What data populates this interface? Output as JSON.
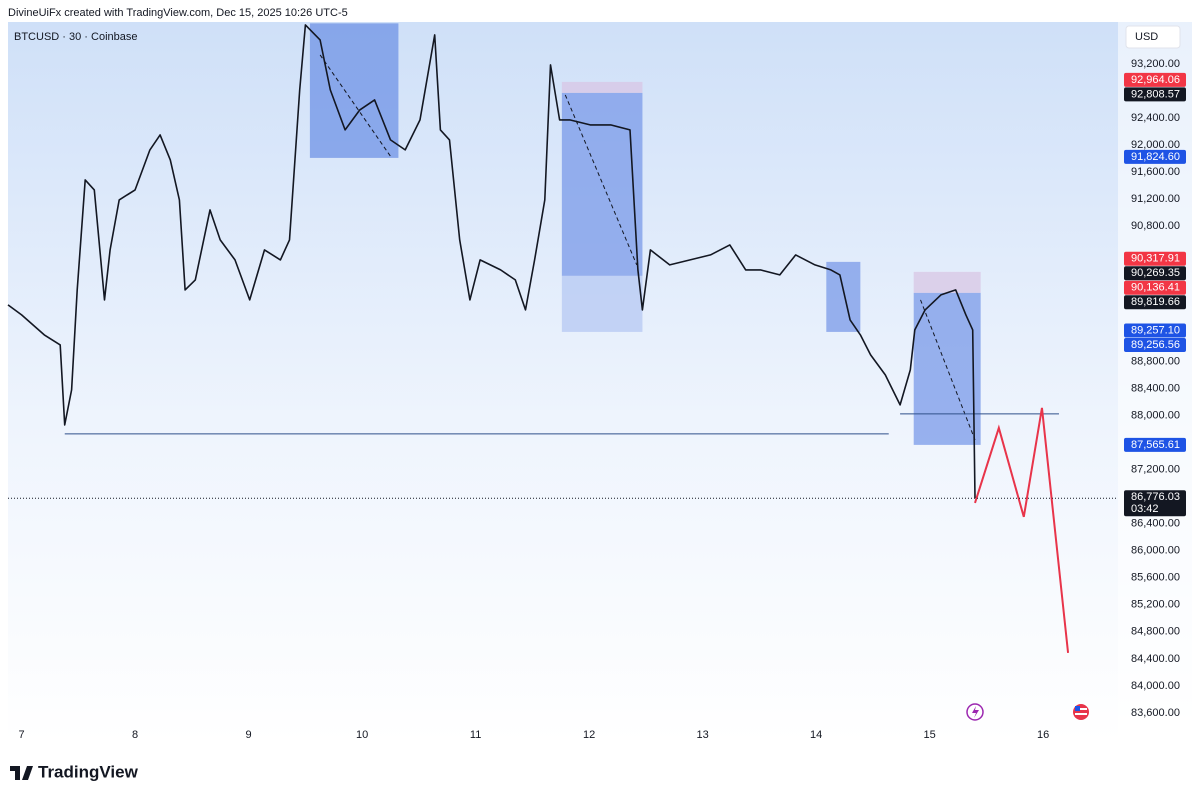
{
  "header": "DivineUiFx created with TradingView.com, Dec 15, 2025 10:26 UTC-5",
  "footer": "TradingView",
  "chart_data": {
    "type": "line",
    "title": "BTCUSD · 30 · Coinbase",
    "currency": "USD",
    "color": "#131722",
    "x": [
      6.88,
      7.0,
      7.2,
      7.34,
      7.38,
      7.44,
      7.49,
      7.56,
      7.64,
      7.73,
      7.78,
      7.86,
      8.0,
      8.13,
      8.22,
      8.31,
      8.39,
      8.44,
      8.53,
      8.66,
      8.75,
      8.88,
      9.01,
      9.14,
      9.28,
      9.36,
      9.45,
      9.5,
      9.63,
      9.72,
      9.85,
      9.98,
      10.11,
      10.25,
      10.38,
      10.51,
      10.64,
      10.69,
      10.77,
      10.86,
      10.95,
      11.04,
      11.22,
      11.35,
      11.44,
      11.52,
      11.61,
      11.66,
      11.74,
      11.83,
      12.01,
      12.19,
      12.36,
      12.43,
      12.47,
      12.54,
      12.71,
      12.89,
      13.07,
      13.24,
      13.38,
      13.51,
      13.68,
      13.82,
      13.99,
      14.13,
      14.21,
      14.3,
      14.39,
      14.48,
      14.61,
      14.74,
      14.83,
      14.87,
      14.96,
      15.1,
      15.23,
      15.32,
      15.38,
      15.4
    ],
    "values": [
      89636,
      89488,
      89192,
      89044,
      87861,
      88378,
      89857,
      91484,
      91336,
      89710,
      90449,
      91189,
      91336,
      91928,
      92150,
      91780,
      91189,
      89857,
      90005,
      91041,
      90597,
      90301,
      89710,
      90449,
      90301,
      90597,
      92815,
      93777,
      93555,
      92815,
      92224,
      92520,
      92668,
      92076,
      91928,
      92372,
      93629,
      92224,
      92076,
      90597,
      89710,
      90301,
      90153,
      90005,
      89562,
      90301,
      91189,
      93185,
      92372,
      92372,
      92298,
      92298,
      92224,
      90153,
      89562,
      90449,
      90227,
      90301,
      90375,
      90523,
      90153,
      90153,
      90079,
      90375,
      90227,
      90153,
      90079,
      89414,
      89192,
      88896,
      88600,
      88157,
      88674,
      89266,
      89562,
      89784,
      89857,
      89488,
      89266,
      86776
    ],
    "zones": [
      {
        "x": [
          9.54,
          10.32
        ],
        "y": [
          91810,
          93800
        ],
        "color": "#6f93e6"
      },
      {
        "x": [
          11.76,
          12.47
        ],
        "y": [
          92771,
          92934
        ],
        "color": "#d8c6e4"
      },
      {
        "x": [
          11.76,
          12.47
        ],
        "y": [
          90065,
          92771
        ],
        "color": "#7a9ae8"
      },
      {
        "x": [
          11.76,
          12.47
        ],
        "y": [
          89236,
          90065
        ],
        "color": "#b6c8f3"
      },
      {
        "x": [
          14.09,
          14.39
        ],
        "y": [
          89236,
          90272
        ],
        "color": "#7a9ae8"
      },
      {
        "x": [
          14.86,
          15.45
        ],
        "y": [
          89813,
          90124
        ],
        "color": "#d8c6e4"
      },
      {
        "x": [
          14.86,
          15.45
        ],
        "y": [
          87565,
          89813
        ],
        "color": "#7a9ae8"
      }
    ],
    "arrows": [
      {
        "x": [
          9.63,
          10.26
        ],
        "y": [
          93333,
          91810
        ]
      },
      {
        "x": [
          11.79,
          12.42
        ],
        "y": [
          92742,
          90227
        ]
      },
      {
        "x": [
          14.92,
          15.4
        ],
        "y": [
          89710,
          87639
        ]
      }
    ],
    "levels": [
      {
        "x": [
          7.38,
          14.64
        ],
        "value": 87728
      },
      {
        "x": [
          14.74,
          16.14
        ],
        "value": 88024
      }
    ],
    "projection": {
      "color": "#e8344a",
      "x": [
        15.4,
        15.61,
        15.83,
        15.99,
        16.22
      ],
      "values": [
        86707,
        87816,
        86500,
        88112,
        84489
      ]
    },
    "xlim": [
      6.88,
      16.66
    ],
    "ylim": [
      83200,
      93820
    ],
    "xticks": [
      7,
      8,
      9,
      10,
      11,
      12,
      13,
      14,
      15,
      16
    ],
    "yticks": [
      {
        "value": 93200,
        "label": "93,200.00"
      },
      {
        "value": 92400,
        "label": "92,400.00"
      },
      {
        "value": 92000,
        "label": "92,000.00"
      },
      {
        "value": 91600,
        "label": "91,600.00"
      },
      {
        "value": 91200,
        "label": "91,200.00"
      },
      {
        "value": 90800,
        "label": "90,800.00"
      },
      {
        "value": 88800,
        "label": "88,800.00"
      },
      {
        "value": 88400,
        "label": "88,400.00"
      },
      {
        "value": 88000,
        "label": "88,000.00"
      },
      {
        "value": 87200,
        "label": "87,200.00"
      },
      {
        "value": 86400,
        "label": "86,400.00"
      },
      {
        "value": 86000,
        "label": "86,000.00"
      },
      {
        "value": 85600,
        "label": "85,600.00"
      },
      {
        "value": 85200,
        "label": "85,200.00"
      },
      {
        "value": 84800,
        "label": "84,800.00"
      },
      {
        "value": 84400,
        "label": "84,400.00"
      },
      {
        "value": 84000,
        "label": "84,000.00"
      },
      {
        "value": 83600,
        "label": "83,600.00"
      }
    ],
    "price_labels": [
      {
        "value": 92964.06,
        "label": "92,964.06",
        "color": "#f23645"
      },
      {
        "value": 92808.57,
        "label": "92,808.57",
        "color": "#131722"
      },
      {
        "value": 91824.6,
        "label": "91,824.60",
        "color": "#1e53e5"
      },
      {
        "value": 90317.91,
        "label": "90,317.91",
        "color": "#f23645"
      },
      {
        "value": 90269.35,
        "label": "90,269.35",
        "color": "#131722"
      },
      {
        "value": 90136.41,
        "label": "90,136.41",
        "color": "#f23645"
      },
      {
        "value": 89819.66,
        "label": "89,819.66",
        "color": "#131722"
      },
      {
        "value": 89257.1,
        "label": "89,257.10",
        "color": "#1e53e5"
      },
      {
        "value": 89256.56,
        "label": "89,256.56",
        "color": "#1e53e5"
      },
      {
        "value": 87565.61,
        "label": "87,565.61",
        "color": "#1e53e5"
      }
    ],
    "last": {
      "value": 86776.03,
      "label": "86,776.03",
      "timer": "03:42",
      "color": "#131722"
    }
  }
}
